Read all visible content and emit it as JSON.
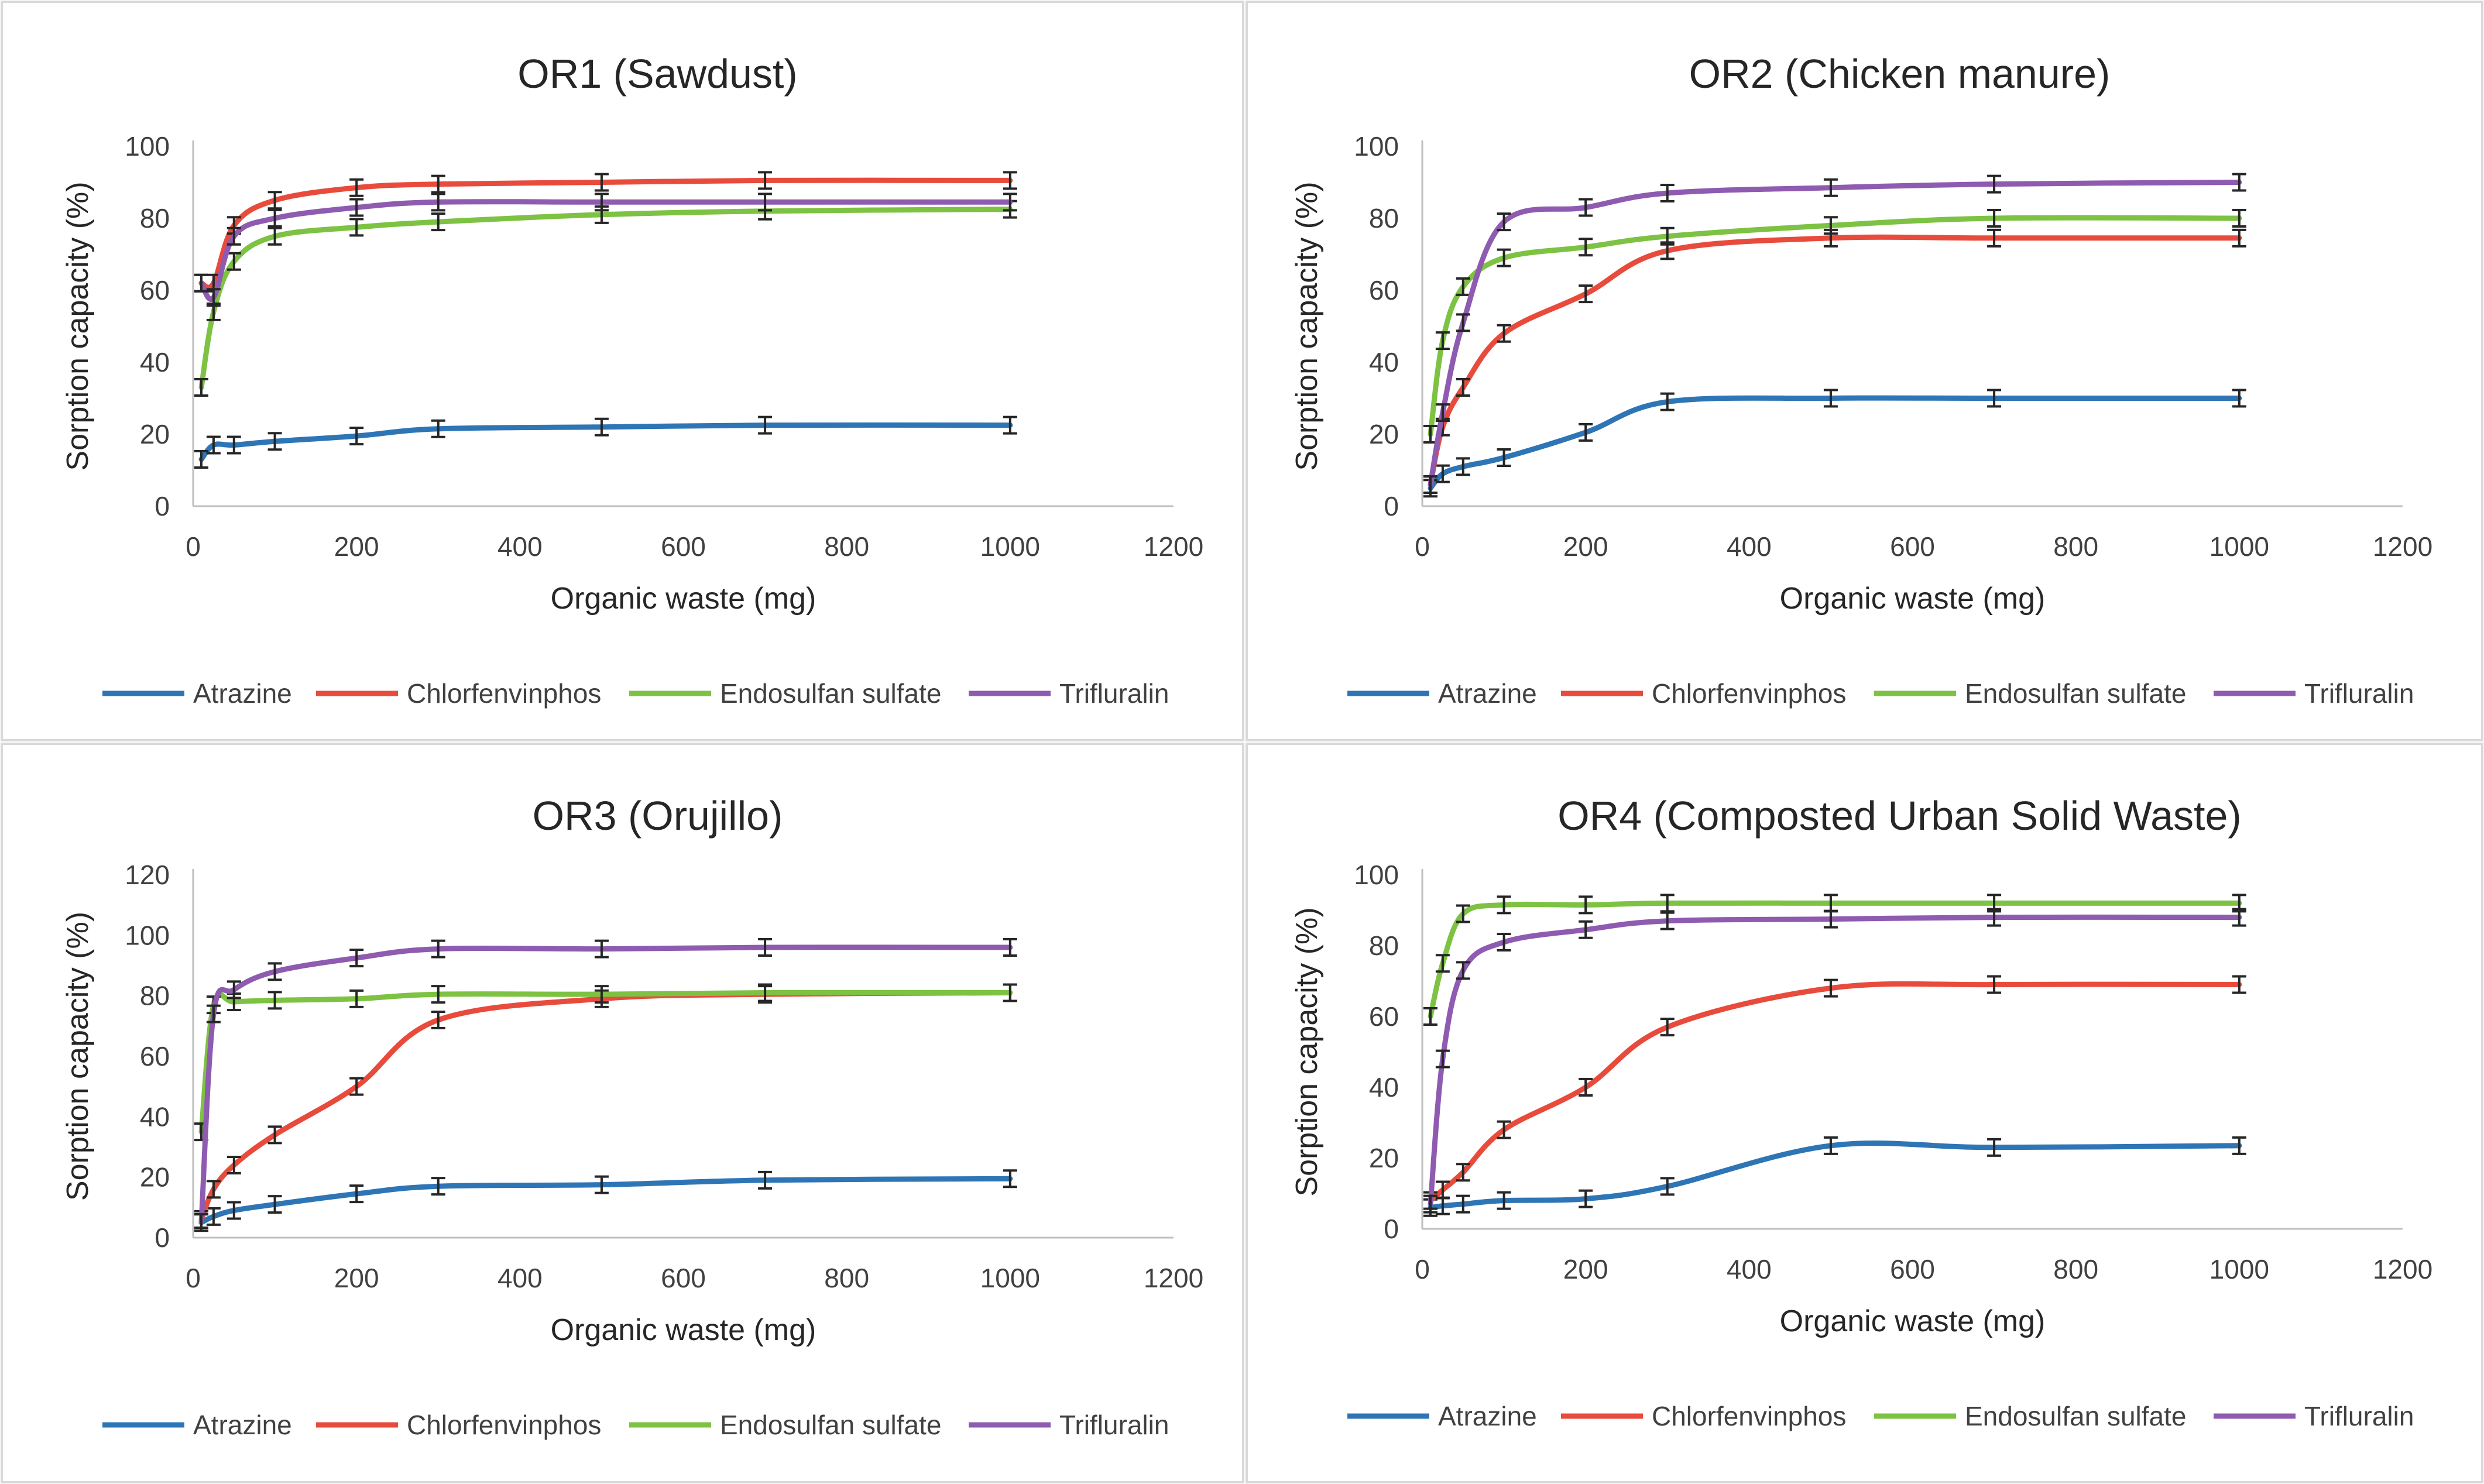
{
  "chart_data": [
    {
      "type": "line",
      "title": "OR1 (Sawdust)",
      "xlabel": "Organic waste (mg)",
      "ylabel": "Sorption capacity (%)",
      "xlim": [
        0,
        1200
      ],
      "xticks": [
        0,
        200,
        400,
        600,
        800,
        1000,
        1200
      ],
      "ylim": [
        0,
        100
      ],
      "yticks": [
        0,
        20,
        40,
        60,
        80,
        100
      ],
      "x": [
        10,
        25,
        50,
        100,
        200,
        300,
        500,
        700,
        1000
      ],
      "legend_position": "bottom",
      "series": [
        {
          "name": "Atrazine",
          "color": "#2E75B6",
          "values": [
            13,
            17,
            17,
            18,
            19.5,
            21.5,
            22,
            22.5,
            22.5
          ]
        },
        {
          "name": "Chlorfenvinphos",
          "color": "#E84B3C",
          "values": [
            62,
            62,
            78,
            85,
            88.5,
            89.5,
            90,
            90.5,
            90.5
          ]
        },
        {
          "name": "Endosulfan sulfate",
          "color": "#7DC242",
          "values": [
            33,
            54,
            68,
            75,
            77.5,
            79,
            81,
            82,
            82.5
          ]
        },
        {
          "name": "Trifluralin",
          "color": "#8E5BB0",
          "values": [
            62,
            58,
            75,
            80,
            83,
            84.5,
            84.5,
            84.5,
            84.5
          ]
        }
      ]
    },
    {
      "type": "line",
      "title": "OR2 (Chicken manure)",
      "xlabel": "Organic waste (mg)",
      "ylabel": "Sorption capacity (%)",
      "xlim": [
        0,
        1200
      ],
      "xticks": [
        0,
        200,
        400,
        600,
        800,
        1000,
        1200
      ],
      "ylim": [
        0,
        100
      ],
      "yticks": [
        0,
        20,
        40,
        60,
        80,
        100
      ],
      "x": [
        10,
        25,
        50,
        100,
        200,
        300,
        500,
        700,
        1000
      ],
      "legend_position": "bottom",
      "series": [
        {
          "name": "Atrazine",
          "color": "#2E75B6",
          "values": [
            5,
            9,
            11,
            13.5,
            20.5,
            29,
            30,
            30,
            30
          ]
        },
        {
          "name": "Chlorfenvinphos",
          "color": "#E84B3C",
          "values": [
            6,
            22,
            33,
            48,
            59,
            71,
            74.5,
            74.5,
            74.5
          ]
        },
        {
          "name": "Endosulfan sulfate",
          "color": "#7DC242",
          "values": [
            20,
            46,
            61,
            69,
            72,
            75,
            78,
            80,
            80
          ]
        },
        {
          "name": "Trifluralin",
          "color": "#8E5BB0",
          "values": [
            6,
            26,
            51,
            79,
            83,
            87,
            88.5,
            89.5,
            90
          ]
        }
      ]
    },
    {
      "type": "line",
      "title": "OR3 (Orujillo)",
      "xlabel": "Organic waste (mg)",
      "ylabel": "Sorption capacity (%)",
      "xlim": [
        0,
        1200
      ],
      "xticks": [
        0,
        200,
        400,
        600,
        800,
        1000,
        1200
      ],
      "ylim": [
        0,
        120
      ],
      "yticks": [
        0,
        20,
        40,
        60,
        80,
        100,
        120
      ],
      "x": [
        10,
        25,
        50,
        100,
        200,
        300,
        500,
        700,
        1000
      ],
      "legend_position": "bottom",
      "series": [
        {
          "name": "Atrazine",
          "color": "#2E75B6",
          "values": [
            5,
            7,
            9,
            11,
            14.5,
            17,
            17.5,
            19,
            19.5
          ]
        },
        {
          "name": "Chlorfenvinphos",
          "color": "#E84B3C",
          "values": [
            6,
            16,
            24,
            34,
            50,
            72,
            79,
            80.5,
            81
          ]
        },
        {
          "name": "Endosulfan sulfate",
          "color": "#7DC242",
          "values": [
            35,
            77,
            78,
            78.5,
            79,
            80.5,
            80.5,
            81,
            81
          ]
        },
        {
          "name": "Trifluralin",
          "color": "#8E5BB0",
          "values": [
            5,
            74,
            82,
            88,
            92.5,
            95.5,
            95.5,
            96,
            96
          ]
        }
      ]
    },
    {
      "type": "line",
      "title": "OR4 (Composted Urban Solid Waste)",
      "xlabel": "Organic waste (mg)",
      "ylabel": "Sorption capacity (%)",
      "xlim": [
        0,
        1200
      ],
      "xticks": [
        0,
        200,
        400,
        600,
        800,
        1000,
        1200
      ],
      "ylim": [
        0,
        100
      ],
      "yticks": [
        0,
        20,
        40,
        60,
        80,
        100
      ],
      "x": [
        10,
        25,
        50,
        100,
        200,
        300,
        500,
        700,
        1000
      ],
      "legend_position": "bottom",
      "series": [
        {
          "name": "Atrazine",
          "color": "#2E75B6",
          "values": [
            6,
            6.5,
            7,
            8,
            8.5,
            12,
            23.5,
            23,
            23.5
          ]
        },
        {
          "name": "Chlorfenvinphos",
          "color": "#E84B3C",
          "values": [
            8,
            11,
            16,
            28,
            40,
            57,
            68,
            69,
            69
          ]
        },
        {
          "name": "Endosulfan sulfate",
          "color": "#7DC242",
          "values": [
            60,
            75,
            89,
            91.5,
            91.5,
            92,
            92,
            92,
            92
          ]
        },
        {
          "name": "Trifluralin",
          "color": "#8E5BB0",
          "values": [
            7,
            48,
            73,
            81,
            84.5,
            87,
            87.5,
            88,
            88
          ]
        }
      ]
    }
  ]
}
